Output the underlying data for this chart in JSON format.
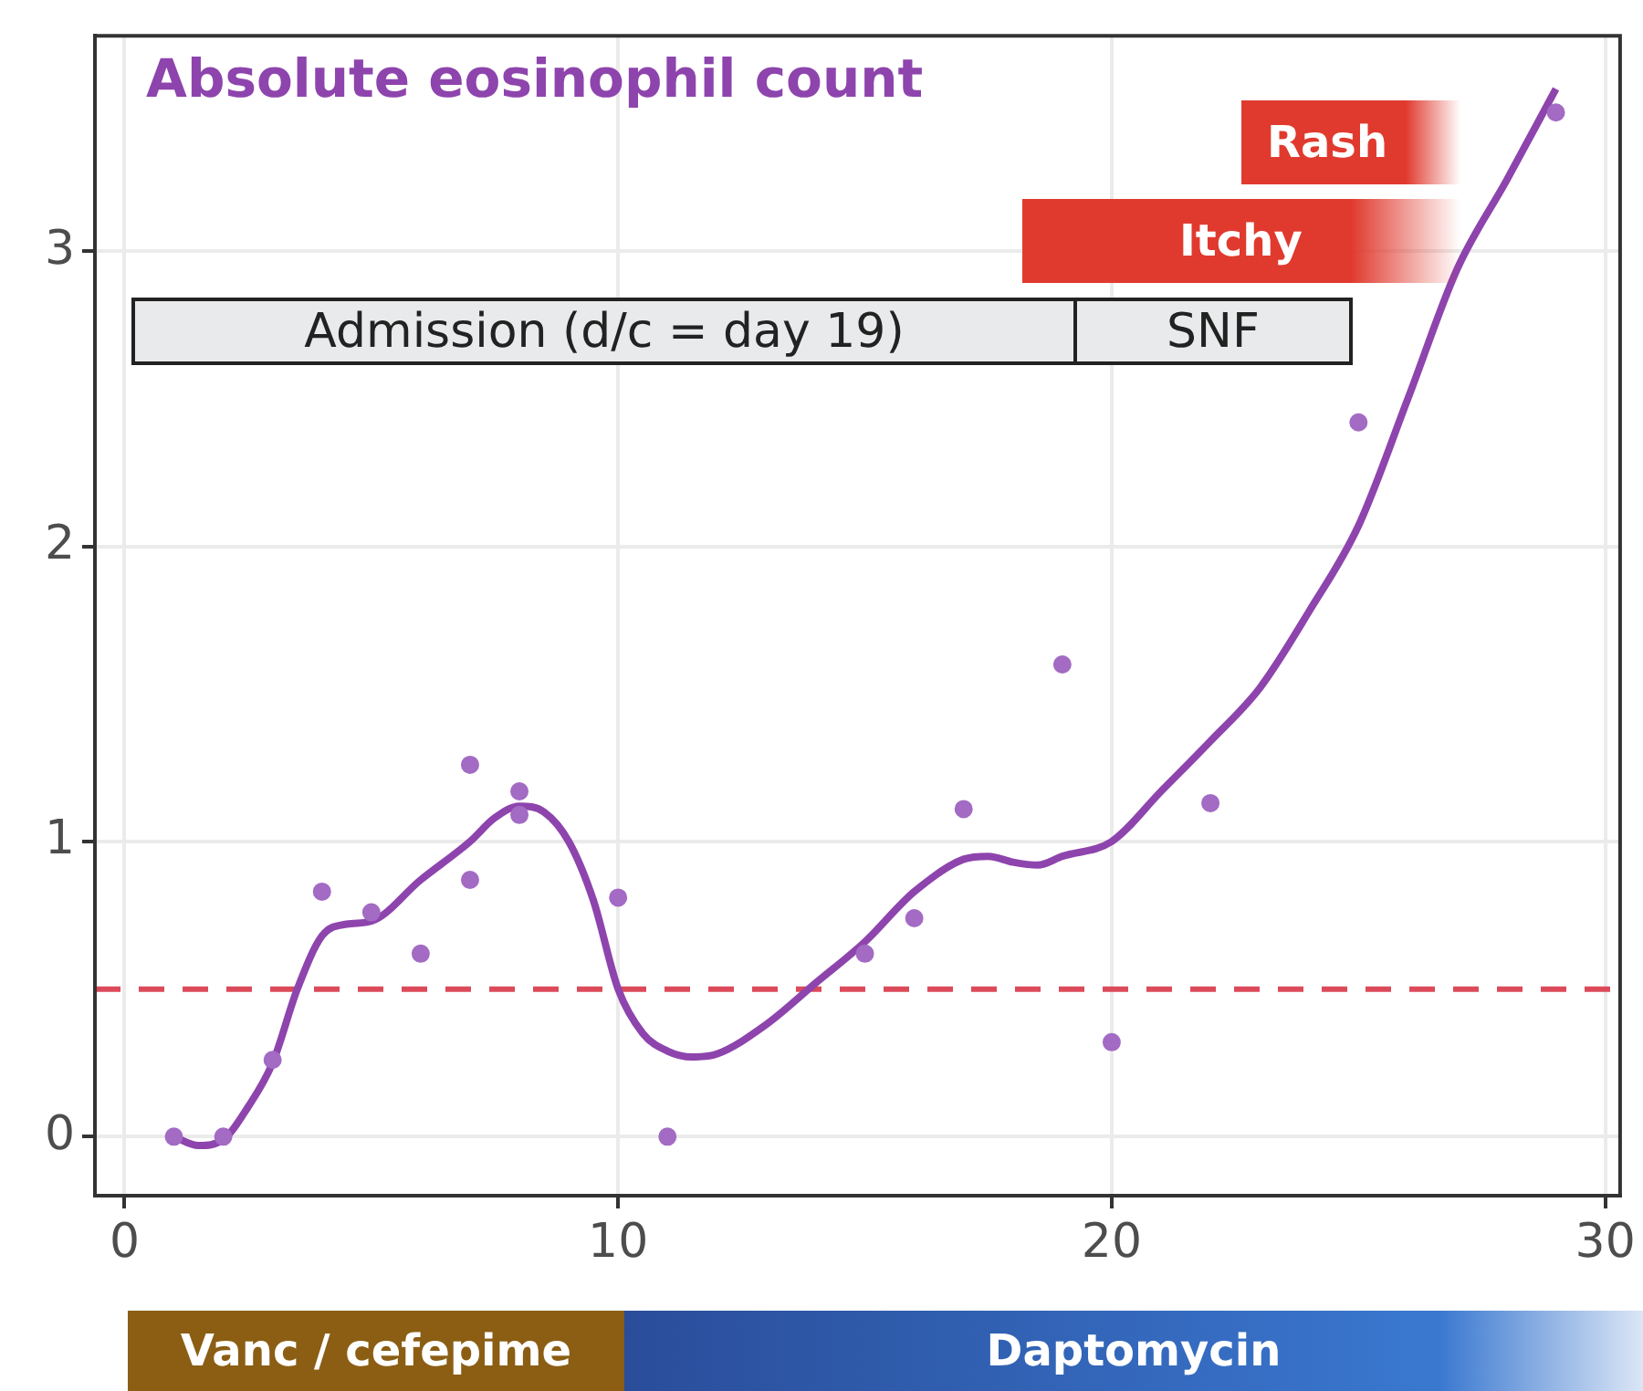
{
  "chart_data": {
    "type": "scatter",
    "title": "Absolute eosinophil count",
    "series": [
      {
        "type": "scatter",
        "color": "#a36bc4",
        "marker": "circle",
        "x": [
          1,
          2,
          3,
          4,
          5,
          6,
          7,
          7,
          8,
          8,
          10,
          11,
          15,
          16,
          17,
          19,
          20,
          22,
          25,
          29
        ],
        "values": [
          0,
          0,
          0.26,
          0.83,
          0.76,
          0.62,
          1.26,
          0.87,
          1.17,
          1.09,
          0.81,
          0,
          0.62,
          0.74,
          1.11,
          1.6,
          0.32,
          1.13,
          2.42,
          3.47
        ]
      },
      {
        "type": "line",
        "color": "#8e44ad",
        "marker": "none",
        "line_style": "solid",
        "x": [
          1,
          1.5,
          2,
          2.5,
          3,
          3.5,
          4,
          4.5,
          5,
          6,
          7,
          7.5,
          8,
          8.5,
          9,
          9.5,
          10,
          10.5,
          11,
          11.5,
          12,
          13,
          14,
          15,
          16,
          17,
          17.5,
          18,
          18.5,
          19,
          20,
          21,
          22,
          23,
          24,
          25,
          26,
          27,
          28,
          29
        ],
        "values": [
          0,
          -0.03,
          -0.01,
          0.1,
          0.25,
          0.5,
          0.68,
          0.72,
          0.73,
          0.87,
          1,
          1.08,
          1.12,
          1.1,
          1,
          0.8,
          0.5,
          0.35,
          0.29,
          0.27,
          0.28,
          0.38,
          0.52,
          0.66,
          0.83,
          0.94,
          0.95,
          0.93,
          0.92,
          0.95,
          1,
          1.17,
          1.34,
          1.52,
          1.78,
          2.07,
          2.5,
          2.94,
          3.24,
          3.55
        ]
      }
    ],
    "xlim": [
      -0.6,
      30.3
    ],
    "xticks": [
      0,
      10,
      20,
      30
    ],
    "ylim": [
      -0.2,
      3.73
    ],
    "yticks": [
      0,
      1,
      2,
      3
    ],
    "grid": true,
    "ref_lines": [
      {
        "axis": "y",
        "value": 0.5,
        "color": "#dc4a5a",
        "line_style": "dashed"
      }
    ],
    "annotations": [
      "Rash",
      "Itchy",
      "Admission (d/c = day 19)",
      "SNF",
      "Vanc / cefepime",
      "Daptomycin"
    ]
  }
}
